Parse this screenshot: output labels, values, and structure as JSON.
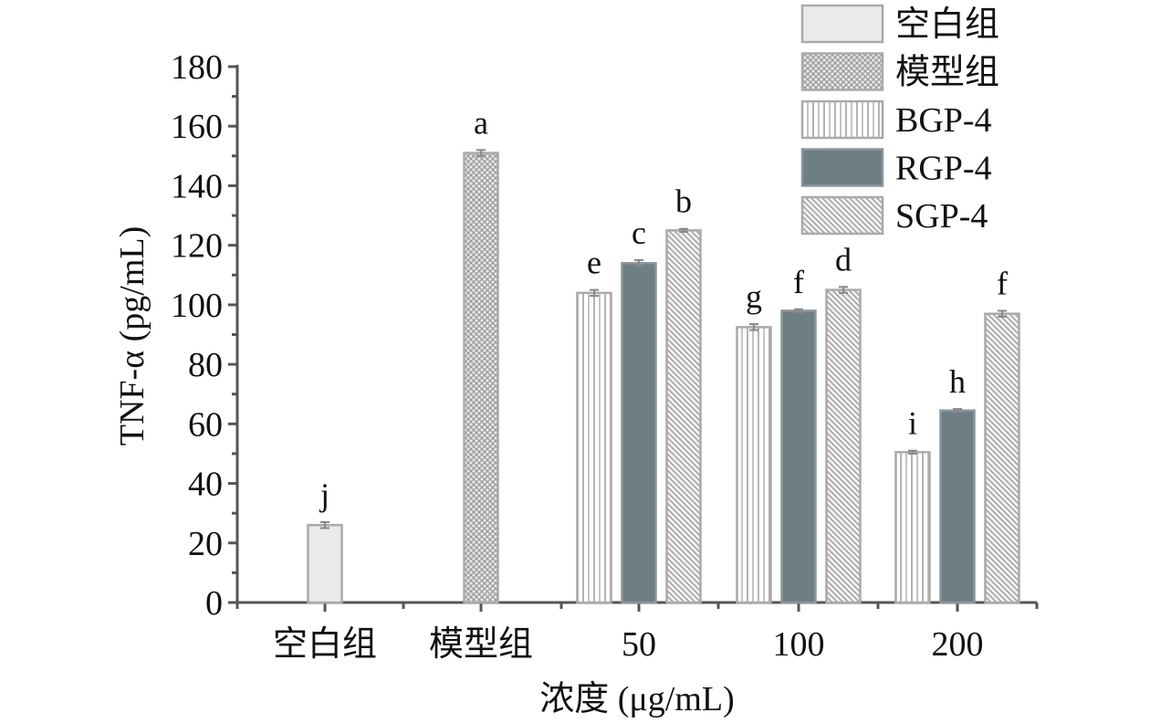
{
  "chart_data": {
    "type": "bar",
    "categories": [
      "空白组",
      "模型组",
      "50",
      "100",
      "200"
    ],
    "xlabel": "浓度 (μg/mL)",
    "ylabel": "TNF-α (pg/mL)",
    "ylim": [
      0,
      180
    ],
    "yticks": [
      "0",
      "20",
      "40",
      "60",
      "80",
      "100",
      "120",
      "140",
      "160",
      "180"
    ],
    "grid": false,
    "legend_position": "top-right",
    "series": [
      {
        "name": "空白组",
        "pattern": "solid-light",
        "color": "#ebebeb",
        "values": [
          26,
          null,
          null,
          null,
          null
        ],
        "errors": [
          1,
          null,
          null,
          null,
          null
        ],
        "labels": [
          "j",
          null,
          null,
          null,
          null
        ]
      },
      {
        "name": "模型组",
        "pattern": "crosshatch",
        "color": "#a9a9a9",
        "values": [
          null,
          151,
          null,
          null,
          null
        ],
        "errors": [
          null,
          1,
          null,
          null,
          null
        ],
        "labels": [
          null,
          "a",
          null,
          null,
          null
        ]
      },
      {
        "name": "BGP-4",
        "pattern": "vertical",
        "color": "#b5b5b5",
        "values": [
          null,
          null,
          104,
          92.5,
          50.5
        ],
        "errors": [
          null,
          null,
          1,
          1,
          0.5
        ],
        "labels": [
          null,
          null,
          "e",
          "g",
          "i"
        ]
      },
      {
        "name": "RGP-4",
        "pattern": "solid-dark",
        "color": "#6e7e85",
        "values": [
          null,
          null,
          114,
          98,
          64.5
        ],
        "errors": [
          null,
          null,
          1,
          0.5,
          0.5
        ],
        "labels": [
          null,
          null,
          "c",
          "f",
          "h"
        ]
      },
      {
        "name": "SGP-4",
        "pattern": "diagonal",
        "color": "#a5a5a5",
        "values": [
          null,
          null,
          125,
          105,
          97
        ],
        "errors": [
          null,
          null,
          0.5,
          1,
          1
        ],
        "labels": [
          null,
          null,
          "b",
          "d",
          "f"
        ]
      }
    ]
  }
}
